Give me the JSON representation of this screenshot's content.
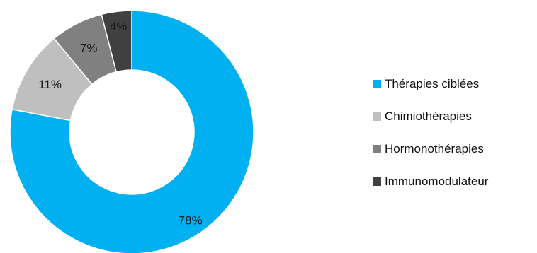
{
  "chart_data": {
    "type": "pie",
    "categories": [
      "Thérapies ciblées",
      "Chimiothérapies",
      "Hormonothérapies",
      "Immunomodulateur"
    ],
    "values": [
      78,
      11,
      7,
      4
    ],
    "labels": [
      "78%",
      "11%",
      "7%",
      "4%"
    ],
    "colors": [
      "#00b0f0",
      "#bfbfbf",
      "#808080",
      "#404040"
    ],
    "donut": true,
    "legend_position": "right"
  }
}
